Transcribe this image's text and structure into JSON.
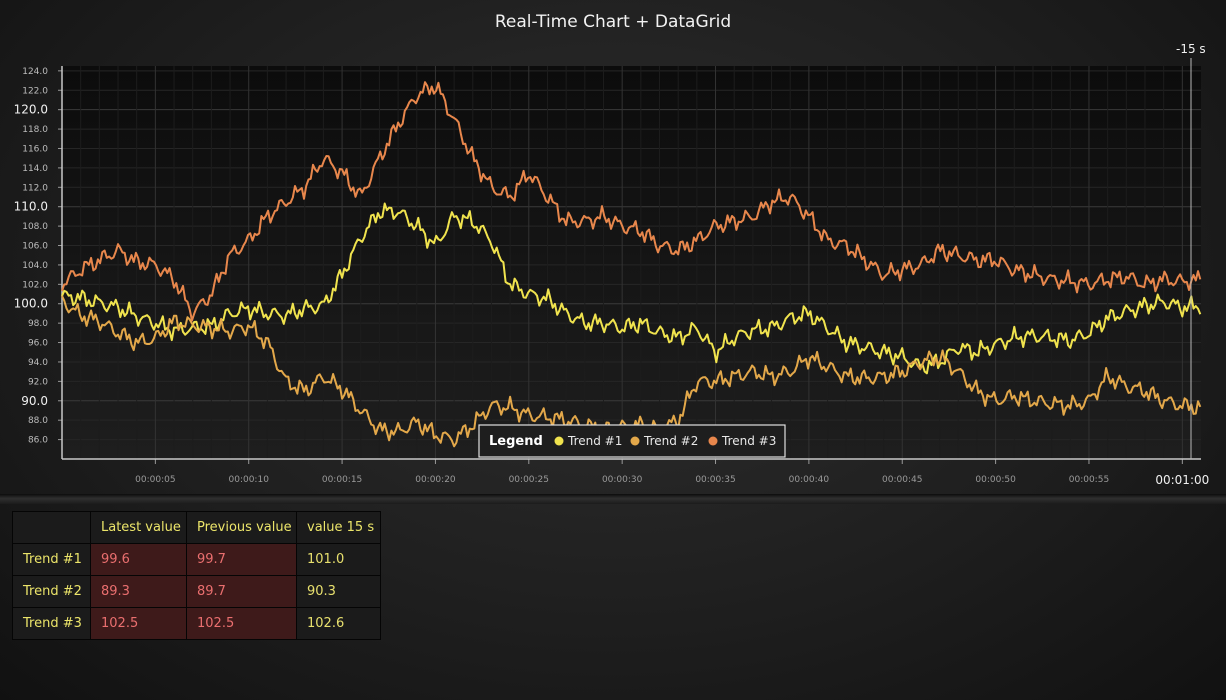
{
  "chart_data": {
    "type": "line",
    "title": "Real-Time Chart + DataGrid",
    "xlabel": "",
    "ylabel": "",
    "x_range_seconds": [
      0,
      61
    ],
    "ylim": [
      84,
      124.5
    ],
    "y_ticks": [
      "124.0",
      "122.0",
      "120.0",
      "118.0",
      "116.0",
      "114.0",
      "112.0",
      "110.0",
      "108.0",
      "106.0",
      "104.0",
      "102.0",
      "100.0",
      "98.0",
      "96.0",
      "94.0",
      "92.0",
      "90.0",
      "88.0",
      "86.0"
    ],
    "y_major_ticks": [
      "120.0",
      "110.0",
      "100.0",
      "90.0"
    ],
    "x_ticks": [
      "00:00:05",
      "00:00:10",
      "00:00:15",
      "00:00:20",
      "00:00:25",
      "00:00:30",
      "00:00:35",
      "00:00:40",
      "00:00:45",
      "00:00:50",
      "00:00:55",
      "00:01:00"
    ],
    "marker_label": "-15 s",
    "grid": true,
    "legend": {
      "title": "Legend",
      "placement": "bottom-center"
    },
    "series": [
      {
        "name": "Trend #1",
        "color": "#f0e34e",
        "x": [
          0,
          1,
          2,
          3,
          4,
          5,
          6,
          7,
          8,
          9,
          10,
          11,
          12,
          13,
          14,
          15,
          16,
          17,
          18,
          19,
          20,
          21,
          22,
          23,
          24,
          25,
          26,
          27,
          28,
          29,
          30,
          31,
          32,
          33,
          34,
          35,
          36,
          37,
          38,
          39,
          40,
          41,
          42,
          43,
          44,
          45,
          46,
          47,
          48,
          49,
          50,
          51,
          52,
          53,
          54,
          55,
          56,
          57,
          58,
          59,
          60,
          61
        ],
        "values": [
          100.8,
          100.6,
          100.1,
          99.6,
          98.7,
          98.0,
          97.2,
          97.5,
          97.7,
          99.0,
          99.5,
          99.0,
          98.8,
          99.5,
          99.8,
          103.0,
          106.8,
          109.5,
          109.5,
          108.0,
          106.0,
          109.0,
          108.5,
          106.5,
          102.0,
          101.0,
          100.5,
          99.0,
          98.0,
          98.0,
          97.5,
          98.0,
          97.0,
          96.5,
          97.5,
          95.0,
          96.5,
          97.3,
          97.5,
          98.5,
          99.0,
          97.5,
          96.0,
          95.5,
          95.0,
          94.5,
          93.5,
          94.0,
          95.5,
          95.0,
          95.8,
          96.5,
          96.7,
          96.5,
          96.2,
          97.0,
          98.5,
          99.2,
          99.8,
          100.2,
          99.6,
          99.8
        ]
      },
      {
        "name": "Trend #2",
        "color": "#e3a84a",
        "x": [
          0,
          1,
          2,
          3,
          4,
          5,
          6,
          7,
          8,
          9,
          10,
          11,
          12,
          13,
          14,
          15,
          16,
          17,
          18,
          19,
          20,
          21,
          22,
          23,
          24,
          25,
          26,
          27,
          28,
          29,
          30,
          31,
          32,
          33,
          34,
          35,
          36,
          37,
          38,
          39,
          40,
          41,
          42,
          43,
          44,
          45,
          46,
          47,
          48,
          49,
          50,
          51,
          52,
          53,
          54,
          55,
          56,
          57,
          58,
          59,
          60,
          61
        ],
        "values": [
          100.3,
          98.8,
          98.2,
          97.0,
          96.0,
          96.4,
          98.2,
          97.8,
          97.5,
          97.2,
          97.7,
          96.0,
          92.0,
          91.0,
          92.5,
          91.2,
          89.0,
          87.0,
          86.8,
          87.8,
          86.5,
          86.0,
          87.5,
          89.5,
          89.3,
          88.5,
          88.3,
          88.0,
          87.5,
          87.0,
          87.3,
          87.5,
          87.0,
          88.0,
          92.0,
          92.0,
          92.5,
          93.0,
          92.5,
          93.0,
          94.5,
          93.5,
          92.5,
          92.3,
          92.5,
          93.0,
          94.0,
          94.5,
          93.0,
          91.0,
          90.0,
          90.5,
          90.0,
          89.7,
          89.5,
          90.0,
          92.5,
          91.5,
          91.0,
          90.0,
          89.5,
          89.3
        ]
      },
      {
        "name": "Trend #3",
        "color": "#e8874c",
        "x": [
          0,
          1,
          2,
          3,
          4,
          5,
          6,
          7,
          8,
          9,
          10,
          11,
          12,
          13,
          14,
          15,
          16,
          17,
          18,
          19,
          20,
          21,
          22,
          23,
          24,
          25,
          26,
          27,
          28,
          29,
          30,
          31,
          32,
          33,
          34,
          35,
          36,
          37,
          38,
          39,
          40,
          41,
          42,
          43,
          44,
          45,
          46,
          47,
          48,
          49,
          50,
          51,
          52,
          53,
          54,
          55,
          56,
          57,
          58,
          59,
          60,
          61
        ],
        "values": [
          102.0,
          103.5,
          104.5,
          105.5,
          104.3,
          104.0,
          102.5,
          99.0,
          101.0,
          105.0,
          106.5,
          109.0,
          110.5,
          112.0,
          115.0,
          113.5,
          111.0,
          115.0,
          118.5,
          121.5,
          122.5,
          119.0,
          115.0,
          112.0,
          111.0,
          113.5,
          111.0,
          108.5,
          108.5,
          109.0,
          108.0,
          107.5,
          106.0,
          105.5,
          106.5,
          108.0,
          108.5,
          109.0,
          110.5,
          111.0,
          109.0,
          106.5,
          106.0,
          104.5,
          103.0,
          103.5,
          104.0,
          105.5,
          105.0,
          104.5,
          104.5,
          103.5,
          103.0,
          102.5,
          102.3,
          102.0,
          102.5,
          102.8,
          102.0,
          102.5,
          102.3,
          102.5
        ]
      }
    ]
  },
  "grid": {
    "headers": [
      "",
      "Latest value",
      "Previous value",
      "value 15 s"
    ],
    "rows": [
      {
        "name": "Trend #1",
        "latest": "99.6",
        "previous": "99.7",
        "ago15": "101.0"
      },
      {
        "name": "Trend #2",
        "latest": "89.3",
        "previous": "89.7",
        "ago15": "90.3"
      },
      {
        "name": "Trend #3",
        "latest": "102.5",
        "previous": "102.5",
        "ago15": "102.6"
      }
    ]
  }
}
